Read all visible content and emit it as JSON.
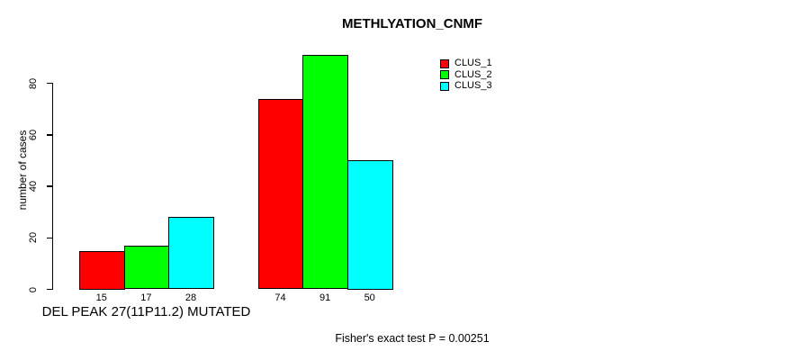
{
  "chart_data": {
    "type": "bar",
    "title": "METHLYATION_CNMF",
    "ylabel": "number of cases",
    "xlabel": "DEL PEAK 27(11P11.2) MUTATED",
    "footnote": "Fisher's exact test P = 0.00251",
    "yticks": [
      0,
      20,
      40,
      60,
      80
    ],
    "ylim": [
      0,
      91
    ],
    "grid": false,
    "legend_position": "top-right",
    "categories": [
      "DEL PEAK 27(11P11.2) MUTATED",
      ""
    ],
    "series": [
      {
        "name": "CLUS_1",
        "color": "#ff0000",
        "values": [
          15,
          74
        ]
      },
      {
        "name": "CLUS_2",
        "color": "#00ff00",
        "values": [
          17,
          91
        ]
      },
      {
        "name": "CLUS_3",
        "color": "#00ffff",
        "values": [
          28,
          50
        ]
      }
    ],
    "bar_outline_color": "#000000",
    "axis_color": "#000000",
    "background_color": "#ffffff"
  }
}
